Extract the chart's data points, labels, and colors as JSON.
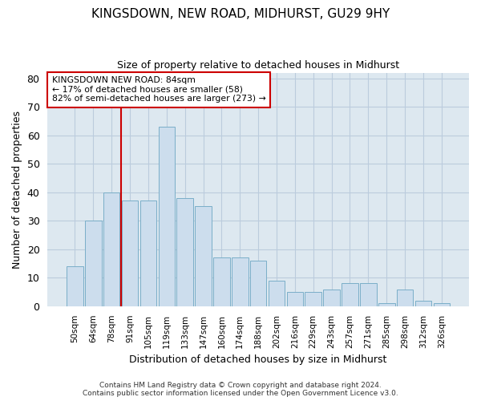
{
  "title": "KINGSDOWN, NEW ROAD, MIDHURST, GU29 9HY",
  "subtitle": "Size of property relative to detached houses in Midhurst",
  "xlabel": "Distribution of detached houses by size in Midhurst",
  "ylabel": "Number of detached properties",
  "categories": [
    "50sqm",
    "64sqm",
    "78sqm",
    "91sqm",
    "105sqm",
    "119sqm",
    "133sqm",
    "147sqm",
    "160sqm",
    "174sqm",
    "188sqm",
    "202sqm",
    "216sqm",
    "229sqm",
    "243sqm",
    "257sqm",
    "271sqm",
    "285sqm",
    "298sqm",
    "312sqm",
    "326sqm"
  ],
  "values": [
    14,
    30,
    40,
    37,
    37,
    63,
    38,
    35,
    17,
    17,
    16,
    9,
    5,
    5,
    6,
    8,
    8,
    1,
    6,
    2,
    1
  ],
  "bar_color": "#ccdded",
  "bar_edge_color": "#7aaec8",
  "plot_bg_color": "#dde8f0",
  "background_color": "#ffffff",
  "grid_color": "#bbccdd",
  "annotation_box_text": "KINGSDOWN NEW ROAD: 84sqm\n← 17% of detached houses are smaller (58)\n82% of semi-detached houses are larger (273) →",
  "annotation_box_facecolor": "#ffffff",
  "annotation_box_edgecolor": "#cc0000",
  "annotation_line_color": "#cc0000",
  "red_line_bar_index": 2,
  "ylim_max": 82,
  "yticks": [
    0,
    10,
    20,
    30,
    40,
    50,
    60,
    70,
    80
  ],
  "title_fontsize": 11,
  "subtitle_fontsize": 9,
  "footer_line1": "Contains HM Land Registry data © Crown copyright and database right 2024.",
  "footer_line2": "Contains public sector information licensed under the Open Government Licence v3.0."
}
